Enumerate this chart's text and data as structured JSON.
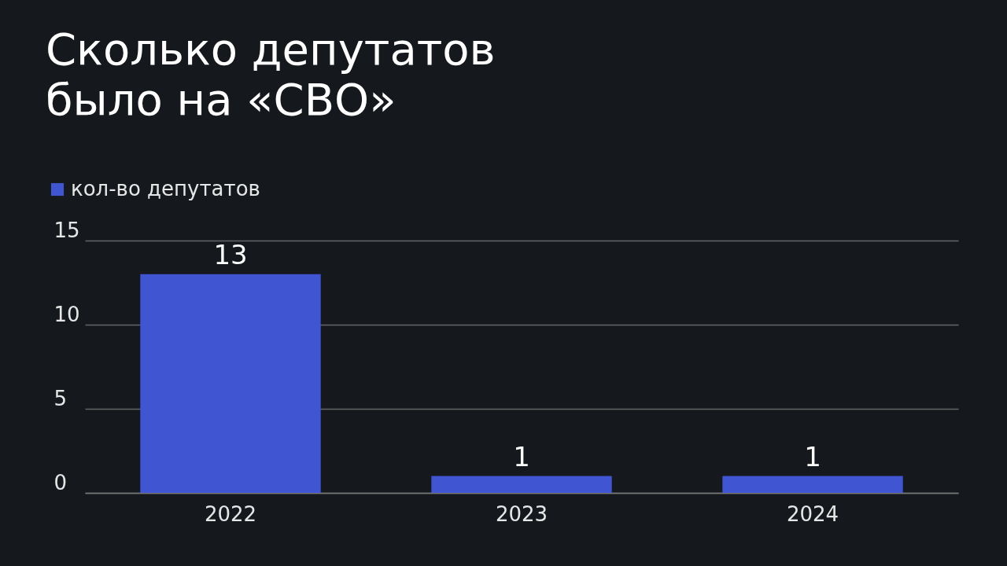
{
  "chart_data": {
    "type": "bar",
    "title": "Сколько депутатов\nбыло на «СВО»",
    "categories": [
      "2022",
      "2023",
      "2024"
    ],
    "series": [
      {
        "name": "кол-во депутатов",
        "color": "#3f55d2",
        "values": [
          13,
          1,
          1
        ]
      }
    ],
    "ylim": [
      0,
      15
    ],
    "yticks": [
      0,
      5,
      10,
      15
    ],
    "grid": "y",
    "legend": "top left",
    "data_labels": true
  }
}
